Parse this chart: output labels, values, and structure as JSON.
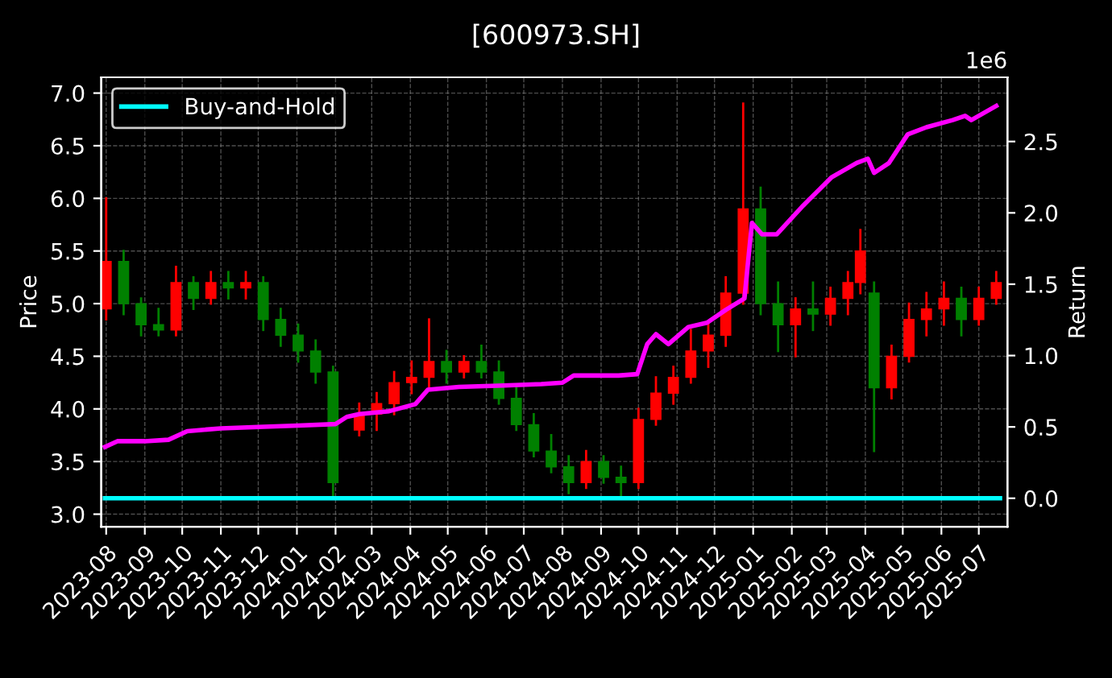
{
  "chart_data": {
    "type": "candlestick",
    "title": "[600973.SH]",
    "ylabel": "Price",
    "y2label": "Return",
    "annotations": [
      "1e6"
    ],
    "x": [
      "2023-08-01",
      "2023-08-15",
      "2023-08-29",
      "2023-09-12",
      "2023-09-26",
      "2023-10-10",
      "2023-10-24",
      "2023-11-07",
      "2023-11-21",
      "2023-12-05",
      "2023-12-19",
      "2024-01-02",
      "2024-01-16",
      "2024-01-30",
      "2024-02-20",
      "2024-03-05",
      "2024-03-19",
      "2024-04-02",
      "2024-04-16",
      "2024-04-30",
      "2024-05-14",
      "2024-05-28",
      "2024-06-11",
      "2024-06-25",
      "2024-07-09",
      "2024-07-23",
      "2024-08-06",
      "2024-08-20",
      "2024-09-03",
      "2024-09-17",
      "2024-10-01",
      "2024-10-15",
      "2024-10-29",
      "2024-11-12",
      "2024-11-26",
      "2024-12-10",
      "2024-12-24",
      "2025-01-07",
      "2025-01-21",
      "2025-02-04",
      "2025-02-18",
      "2025-03-04",
      "2025-03-18",
      "2025-03-28",
      "2025-04-08",
      "2025-04-22",
      "2025-05-06",
      "2025-05-20",
      "2025-06-03",
      "2025-06-17",
      "2025-07-01",
      "2025-07-15"
    ],
    "ohlc": [
      [
        4.95,
        6.0,
        4.85,
        5.4
      ],
      [
        5.4,
        5.5,
        4.9,
        5.0
      ],
      [
        5.0,
        5.05,
        4.7,
        4.8
      ],
      [
        4.8,
        4.95,
        4.7,
        4.75
      ],
      [
        4.75,
        5.35,
        4.7,
        5.2
      ],
      [
        5.2,
        5.25,
        4.95,
        5.05
      ],
      [
        5.05,
        5.3,
        5.0,
        5.2
      ],
      [
        5.2,
        5.3,
        5.05,
        5.15
      ],
      [
        5.15,
        5.3,
        5.05,
        5.2
      ],
      [
        5.2,
        5.25,
        4.75,
        4.85
      ],
      [
        4.85,
        4.95,
        4.6,
        4.7
      ],
      [
        4.7,
        4.8,
        4.45,
        4.55
      ],
      [
        4.55,
        4.65,
        4.25,
        4.35
      ],
      [
        4.35,
        4.4,
        3.15,
        3.3
      ],
      [
        3.8,
        4.05,
        3.75,
        3.95
      ],
      [
        3.95,
        4.15,
        3.8,
        4.05
      ],
      [
        4.05,
        4.35,
        3.95,
        4.25
      ],
      [
        4.25,
        4.45,
        4.15,
        4.3
      ],
      [
        4.3,
        4.85,
        4.2,
        4.45
      ],
      [
        4.45,
        4.55,
        4.25,
        4.35
      ],
      [
        4.35,
        4.5,
        4.3,
        4.45
      ],
      [
        4.45,
        4.6,
        4.3,
        4.35
      ],
      [
        4.35,
        4.45,
        4.05,
        4.1
      ],
      [
        4.1,
        4.2,
        3.8,
        3.85
      ],
      [
        3.85,
        3.95,
        3.55,
        3.6
      ],
      [
        3.6,
        3.75,
        3.4,
        3.45
      ],
      [
        3.45,
        3.55,
        3.2,
        3.3
      ],
      [
        3.3,
        3.6,
        3.25,
        3.5
      ],
      [
        3.5,
        3.55,
        3.3,
        3.35
      ],
      [
        3.35,
        3.45,
        3.15,
        3.3
      ],
      [
        3.3,
        4.0,
        3.25,
        3.9
      ],
      [
        3.9,
        4.3,
        3.85,
        4.15
      ],
      [
        4.15,
        4.4,
        4.05,
        4.3
      ],
      [
        4.3,
        4.75,
        4.25,
        4.55
      ],
      [
        4.55,
        4.8,
        4.4,
        4.7
      ],
      [
        4.7,
        5.25,
        4.6,
        5.1
      ],
      [
        5.1,
        6.9,
        5.0,
        5.9
      ],
      [
        5.9,
        6.1,
        4.9,
        5.0
      ],
      [
        5.0,
        5.2,
        4.55,
        4.8
      ],
      [
        4.8,
        5.05,
        4.5,
        4.95
      ],
      [
        4.95,
        5.2,
        4.75,
        4.9
      ],
      [
        4.9,
        5.15,
        4.8,
        5.05
      ],
      [
        5.05,
        5.3,
        4.9,
        5.2
      ],
      [
        5.2,
        5.7,
        5.1,
        5.5
      ],
      [
        5.1,
        5.2,
        3.6,
        4.2
      ],
      [
        4.2,
        4.6,
        4.1,
        4.5
      ],
      [
        4.5,
        5.0,
        4.45,
        4.85
      ],
      [
        4.85,
        5.1,
        4.7,
        4.95
      ],
      [
        4.95,
        5.2,
        4.8,
        5.05
      ],
      [
        5.05,
        5.15,
        4.7,
        4.85
      ],
      [
        4.85,
        5.15,
        4.8,
        5.05
      ],
      [
        5.05,
        5.3,
        5.0,
        5.2
      ]
    ],
    "colors": [
      "#ff0000",
      "#008000",
      "#008000",
      "#008000",
      "#ff0000",
      "#008000",
      "#ff0000",
      "#008000",
      "#ff0000",
      "#008000",
      "#008000",
      "#008000",
      "#008000",
      "#008000",
      "#ff0000",
      "#ff0000",
      "#ff0000",
      "#ff0000",
      "#ff0000",
      "#008000",
      "#ff0000",
      "#008000",
      "#008000",
      "#008000",
      "#008000",
      "#008000",
      "#008000",
      "#ff0000",
      "#008000",
      "#008000",
      "#ff0000",
      "#ff0000",
      "#ff0000",
      "#ff0000",
      "#ff0000",
      "#ff0000",
      "#ff0000",
      "#008000",
      "#008000",
      "#ff0000",
      "#008000",
      "#ff0000",
      "#ff0000",
      "#ff0000",
      "#008000",
      "#ff0000",
      "#ff0000",
      "#ff0000",
      "#ff0000",
      "#008000",
      "#ff0000",
      "#ff0000"
    ],
    "series": [
      {
        "type": "line",
        "axis": "y2",
        "color": "#ff00ff",
        "x": [
          "2023-07-31",
          "2023-08-10",
          "2023-09-01",
          "2023-09-20",
          "2023-10-05",
          "2023-11-01",
          "2023-12-01",
          "2024-01-02",
          "2024-02-01",
          "2024-02-10",
          "2024-02-20",
          "2024-03-15",
          "2024-04-05",
          "2024-04-15",
          "2024-05-10",
          "2024-06-15",
          "2024-07-15",
          "2024-08-01",
          "2024-08-10",
          "2024-09-15",
          "2024-09-30",
          "2024-10-08",
          "2024-10-15",
          "2024-10-25",
          "2024-11-10",
          "2024-11-25",
          "2024-12-10",
          "2024-12-25",
          "2024-12-31",
          "2025-01-08",
          "2025-01-20",
          "2025-02-10",
          "2025-03-05",
          "2025-03-25",
          "2025-04-03",
          "2025-04-08",
          "2025-04-20",
          "2025-05-05",
          "2025-05-20",
          "2025-06-10",
          "2025-06-20",
          "2025-06-25",
          "2025-07-15"
        ],
        "values": [
          0.36,
          0.4,
          0.4,
          0.41,
          0.47,
          0.49,
          0.5,
          0.51,
          0.52,
          0.57,
          0.59,
          0.61,
          0.66,
          0.76,
          0.78,
          0.79,
          0.8,
          0.81,
          0.86,
          0.86,
          0.87,
          1.08,
          1.15,
          1.08,
          1.2,
          1.23,
          1.32,
          1.4,
          1.93,
          1.85,
          1.85,
          2.05,
          2.25,
          2.35,
          2.38,
          2.28,
          2.35,
          2.55,
          2.6,
          2.65,
          2.68,
          2.65,
          2.75
        ]
      },
      {
        "type": "line",
        "axis": "y2",
        "name": "Buy-and-Hold",
        "color": "#00ffff",
        "x": [
          "2023-07-31",
          "2025-07-18"
        ],
        "values": [
          0.0,
          0.0
        ]
      }
    ],
    "xlim": [
      "2023-07-28",
      "2025-07-24"
    ],
    "xticks": [
      {
        "value": "2023-08",
        "label": "2023-08"
      },
      {
        "value": "2023-09",
        "label": "2023-09"
      },
      {
        "value": "2023-10",
        "label": "2023-10"
      },
      {
        "value": "2023-11",
        "label": "2023-11"
      },
      {
        "value": "2023-12",
        "label": "2023-12"
      },
      {
        "value": "2024-01",
        "label": "2024-01"
      },
      {
        "value": "2024-02",
        "label": "2024-02"
      },
      {
        "value": "2024-03",
        "label": "2024-03"
      },
      {
        "value": "2024-04",
        "label": "2024-04"
      },
      {
        "value": "2024-05",
        "label": "2024-05"
      },
      {
        "value": "2024-06",
        "label": "2024-06"
      },
      {
        "value": "2024-07",
        "label": "2024-07"
      },
      {
        "value": "2024-08",
        "label": "2024-08"
      },
      {
        "value": "2024-09",
        "label": "2024-09"
      },
      {
        "value": "2024-10",
        "label": "2024-10"
      },
      {
        "value": "2024-11",
        "label": "2024-11"
      },
      {
        "value": "2024-12",
        "label": "2024-12"
      },
      {
        "value": "2025-01",
        "label": "2025-01"
      },
      {
        "value": "2025-02",
        "label": "2025-02"
      },
      {
        "value": "2025-03",
        "label": "2025-03"
      },
      {
        "value": "2025-04",
        "label": "2025-04"
      },
      {
        "value": "2025-05",
        "label": "2025-05"
      },
      {
        "value": "2025-06",
        "label": "2025-06"
      },
      {
        "value": "2025-07",
        "label": "2025-07"
      }
    ],
    "ylim": [
      2.88,
      7.15
    ],
    "yticks": [
      {
        "value": 3.0,
        "label": "3.0"
      },
      {
        "value": 3.5,
        "label": "3.5"
      },
      {
        "value": 4.0,
        "label": "4.0"
      },
      {
        "value": 4.5,
        "label": "4.5"
      },
      {
        "value": 5.0,
        "label": "5.0"
      },
      {
        "value": 5.5,
        "label": "5.5"
      },
      {
        "value": 6.0,
        "label": "6.0"
      },
      {
        "value": 6.5,
        "label": "6.5"
      },
      {
        "value": 7.0,
        "label": "7.0"
      }
    ],
    "y2lim": [
      -0.2,
      2.95
    ],
    "y2ticks": [
      {
        "value": 0.0,
        "label": "0.0"
      },
      {
        "value": 0.5,
        "label": "0.5"
      },
      {
        "value": 1.0,
        "label": "1.0"
      },
      {
        "value": 1.5,
        "label": "1.5"
      },
      {
        "value": 2.0,
        "label": "2.0"
      },
      {
        "value": 2.5,
        "label": "2.5"
      }
    ],
    "grid": true,
    "legend": "top left"
  }
}
